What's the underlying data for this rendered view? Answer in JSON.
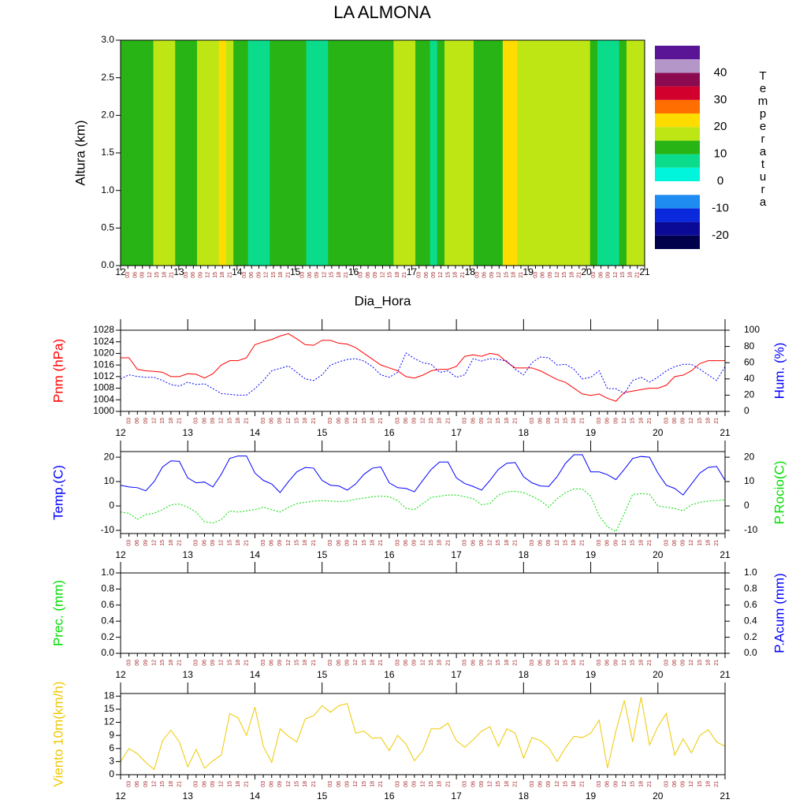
{
  "title": "LA ALMONA",
  "chart_data": [
    {
      "type": "heatmap",
      "ylabel": "Altura (km)",
      "xlabel": "Dia_Hora",
      "ylim": [
        0,
        3
      ],
      "yticks": [
        {
          "value": 0,
          "label": "0.0"
        },
        0.5,
        {
          "value": 1,
          "label": "1.0"
        },
        1.5,
        {
          "value": 2,
          "label": "2.0"
        },
        2.5,
        {
          "value": 3,
          "label": "3.0"
        }
      ],
      "categories": [
        "12",
        "03",
        "06",
        "09",
        "12",
        "15",
        "18",
        "21",
        "13",
        "03",
        "06",
        "09",
        "12",
        "15",
        "18",
        "21",
        "14",
        "03",
        "06",
        "09",
        "12",
        "15",
        "18",
        "21",
        "15",
        "03",
        "06",
        "09",
        "12",
        "15",
        "18",
        "21",
        "16",
        "03",
        "06",
        "09",
        "12",
        "15",
        "18",
        "21",
        "17",
        "03",
        "06",
        "09",
        "12",
        "15",
        "18",
        "21",
        "18",
        "03",
        "06",
        "09",
        "12",
        "15",
        "18",
        "21",
        "19",
        "03",
        "06",
        "09",
        "12",
        "15",
        "18",
        "21",
        "20",
        "03",
        "06",
        "09",
        "12",
        "15",
        "18",
        "21",
        "21"
      ],
      "values": [
        12,
        12,
        12,
        12,
        12,
        17,
        17,
        17,
        12,
        12,
        12,
        17,
        17,
        17,
        21,
        17,
        12,
        12,
        7,
        7,
        7,
        12,
        12,
        12,
        12,
        12,
        7,
        7,
        7,
        12,
        12,
        12,
        12,
        12,
        12,
        12,
        12,
        12,
        17,
        17,
        17,
        12,
        12,
        7,
        12,
        17,
        17,
        17,
        17,
        12,
        12,
        12,
        12,
        21,
        21,
        17,
        17,
        17,
        17,
        17,
        17,
        17,
        17,
        17,
        17,
        12,
        7,
        7,
        7,
        12,
        17,
        17,
        17
      ],
      "colorbar_title": "Temperatura",
      "levels": [
        -25,
        -20,
        -15,
        -10,
        -5,
        0,
        5,
        10,
        15,
        20,
        25,
        30,
        35,
        40,
        45,
        50
      ],
      "colors": [
        "#00004b",
        "#0a0a96",
        "#0a28dc",
        "#1e8cf0",
        "#ffffff",
        "#00f5dc",
        "#0adc8c",
        "#28b414",
        "#bee614",
        "#ffdc00",
        "#ff6e00",
        "#d2002d",
        "#8c0a50",
        "#b496c8",
        "#5a1496"
      ],
      "colorbar_ticks": [
        40,
        30,
        20,
        10,
        0,
        -10,
        -20
      ]
    },
    {
      "type": "line",
      "ylabel": "Pnm (hPa)",
      "y2label": "Hum. (%)",
      "ylabel_color": "#ff0000",
      "y2label_color": "#0000ff",
      "ylim": [
        1000,
        1028
      ],
      "yticks": [
        1000,
        1004,
        1008,
        1012,
        1016,
        1020,
        1024,
        1028
      ],
      "y2lim": [
        0,
        100
      ],
      "y2ticks": [
        0,
        20,
        40,
        60,
        80,
        100
      ],
      "categories": [
        "12",
        "03",
        "06",
        "09",
        "12",
        "15",
        "18",
        "21",
        "13",
        "03",
        "06",
        "09",
        "12",
        "15",
        "18",
        "21",
        "14",
        "03",
        "06",
        "09",
        "12",
        "15",
        "18",
        "21",
        "15",
        "03",
        "06",
        "09",
        "12",
        "15",
        "18",
        "21",
        "16",
        "03",
        "06",
        "09",
        "12",
        "15",
        "18",
        "21",
        "17",
        "03",
        "06",
        "09",
        "12",
        "15",
        "18",
        "21",
        "18",
        "03",
        "06",
        "09",
        "12",
        "15",
        "18",
        "21",
        "19",
        "03",
        "06",
        "09",
        "12",
        "15",
        "18",
        "21",
        "20",
        "03",
        "06",
        "09",
        "12",
        "15",
        "18",
        "21",
        "21"
      ],
      "series": [
        {
          "name": "Pnm",
          "color": "#ff0000",
          "style": "solid",
          "values": [
            1018.5,
            1018.5,
            1014.5,
            1014,
            1013.8,
            1013.5,
            1012,
            1012,
            1013,
            1012.8,
            1011.5,
            1013,
            1016,
            1017.5,
            1017.5,
            1018.5,
            1023,
            1024,
            1024.8,
            1026,
            1026.8,
            1025,
            1023,
            1022.8,
            1024.5,
            1024.5,
            1023.5,
            1023.2,
            1022,
            1020,
            1018,
            1016,
            1015,
            1014,
            1012,
            1011.5,
            1012.5,
            1014,
            1014.5,
            1014.5,
            1015.5,
            1019,
            1019.5,
            1019,
            1020,
            1019.5,
            1017,
            1015,
            1015,
            1015,
            1014,
            1012.5,
            1011,
            1010,
            1008,
            1006,
            1005.5,
            1006,
            1004.5,
            1003.5,
            1006.5,
            1007,
            1007.5,
            1008,
            1008,
            1009,
            1012,
            1012.5,
            1014,
            1016.5,
            1017.5,
            1017.5,
            1017.5
          ]
        },
        {
          "name": "Hum.",
          "color": "#0000ff",
          "style": "dashed",
          "axis": "y2",
          "values": [
            40,
            45,
            43,
            42,
            42,
            38,
            33,
            31,
            36,
            33,
            34,
            28,
            22,
            21,
            20,
            20,
            28,
            38,
            50,
            53,
            56,
            48,
            40,
            38,
            45,
            57,
            61,
            64,
            65,
            62,
            55,
            45,
            42,
            48,
            72,
            65,
            60,
            58,
            48,
            50,
            42,
            45,
            65,
            62,
            65,
            64,
            62,
            52,
            45,
            60,
            67,
            66,
            57,
            58,
            52,
            40,
            42,
            50,
            28,
            28,
            22,
            38,
            42,
            36,
            42,
            50,
            55,
            58,
            58,
            52,
            45,
            38,
            55
          ]
        }
      ]
    },
    {
      "type": "line",
      "ylabel": "Temp.(C)",
      "y2label": "P.Rocio(C)",
      "ylabel_color": "#0000ff",
      "y2label_color": "#00dd00",
      "ylim": [
        -11.3,
        22.3
      ],
      "yticks": [
        -10,
        0,
        10,
        20
      ],
      "y2lim": [
        -11.3,
        22.3
      ],
      "y2ticks": [
        -10,
        0,
        10,
        20
      ],
      "categories": [
        "12",
        "03",
        "06",
        "09",
        "12",
        "15",
        "18",
        "21",
        "13",
        "03",
        "06",
        "09",
        "12",
        "15",
        "18",
        "21",
        "14",
        "03",
        "06",
        "09",
        "12",
        "15",
        "18",
        "21",
        "15",
        "03",
        "06",
        "09",
        "12",
        "15",
        "18",
        "21",
        "16",
        "03",
        "06",
        "09",
        "12",
        "15",
        "18",
        "21",
        "17",
        "03",
        "06",
        "09",
        "12",
        "15",
        "18",
        "21",
        "18",
        "03",
        "06",
        "09",
        "12",
        "15",
        "18",
        "21",
        "19",
        "03",
        "06",
        "09",
        "12",
        "15",
        "18",
        "21",
        "20",
        "03",
        "06",
        "09",
        "12",
        "15",
        "18",
        "21",
        "21"
      ],
      "series": [
        {
          "name": "Temp.",
          "color": "#0000ff",
          "style": "solid",
          "values": [
            8.5,
            7.8,
            7.5,
            6.2,
            10,
            16,
            18.5,
            18.3,
            11.5,
            9.5,
            9.8,
            7.8,
            13,
            19.5,
            20.5,
            20.5,
            13.5,
            10.5,
            9,
            5.5,
            10,
            14,
            15.8,
            15.5,
            10.5,
            8.5,
            8.2,
            6.5,
            9,
            13,
            15.5,
            16,
            9.5,
            7.5,
            7.2,
            5.8,
            10.5,
            15,
            18,
            18,
            11.5,
            9.2,
            8,
            6.5,
            10.5,
            15,
            17.5,
            17.8,
            12,
            9.5,
            8.2,
            8,
            12,
            17.5,
            21,
            21,
            14,
            14,
            12.8,
            10.8,
            15,
            19.5,
            20.3,
            20,
            13.5,
            8.5,
            7.2,
            4.5,
            9,
            13.5,
            15.8,
            16.2,
            10.5
          ]
        },
        {
          "name": "P.Rocio",
          "color": "#00dd00",
          "style": "dashed",
          "axis": "y2",
          "values": [
            -2.5,
            -3,
            -5.5,
            -3.5,
            -3,
            -1.5,
            0.5,
            0.8,
            -0.5,
            -2.5,
            -6.5,
            -7,
            -5.5,
            -2,
            -2.5,
            -2,
            -1.5,
            -0.5,
            -1.5,
            -2.5,
            -0.5,
            1,
            1.5,
            2,
            2.2,
            2,
            1.8,
            2,
            2.8,
            3.2,
            3.8,
            4,
            3.8,
            2.2,
            -1,
            -1.5,
            1,
            3.5,
            4,
            4.5,
            4.5,
            3.8,
            3,
            0.5,
            1,
            4.5,
            5.8,
            6,
            5.5,
            4,
            2.2,
            -0.5,
            3,
            5.5,
            7,
            7,
            4,
            -4,
            -8.5,
            -10.5,
            -3,
            4.8,
            5,
            4.8,
            0,
            -0.5,
            -1,
            -2,
            0.5,
            1.5,
            2,
            2.2,
            2.5
          ]
        }
      ]
    },
    {
      "type": "line",
      "ylabel": "Prec. (mm)",
      "y2label": "P.Acum (mm)",
      "ylabel_color": "#00dd00",
      "y2label_color": "#0000ff",
      "ylim": [
        0,
        1
      ],
      "yticks": [
        {
          "value": 0,
          "label": "0.0"
        },
        0.2,
        0.4,
        0.6,
        0.8,
        {
          "value": 1,
          "label": "1.0"
        }
      ],
      "y2lim": [
        0,
        1
      ],
      "y2ticks": [
        {
          "value": 0,
          "label": "0.0"
        },
        0.2,
        0.4,
        0.6,
        0.8,
        {
          "value": 1,
          "label": "1.0"
        }
      ],
      "categories": [
        "12",
        "03",
        "06",
        "09",
        "12",
        "15",
        "18",
        "21",
        "13",
        "03",
        "06",
        "09",
        "12",
        "15",
        "18",
        "21",
        "14",
        "03",
        "06",
        "09",
        "12",
        "15",
        "18",
        "21",
        "15",
        "03",
        "06",
        "09",
        "12",
        "15",
        "18",
        "21",
        "16",
        "03",
        "06",
        "09",
        "12",
        "15",
        "18",
        "21",
        "17",
        "03",
        "06",
        "09",
        "12",
        "15",
        "18",
        "21",
        "18",
        "03",
        "06",
        "09",
        "12",
        "15",
        "18",
        "21",
        "19",
        "03",
        "06",
        "09",
        "12",
        "15",
        "18",
        "21",
        "20",
        "03",
        "06",
        "09",
        "12",
        "15",
        "18",
        "21",
        "21"
      ],
      "series": []
    },
    {
      "type": "line",
      "ylabel": "Viento 10m(km/h)",
      "ylabel_color": "#f0c800",
      "ylim": [
        0,
        18.6
      ],
      "yticks": [
        0,
        3,
        6,
        9,
        12,
        15,
        18
      ],
      "categories": [
        "12",
        "03",
        "06",
        "09",
        "12",
        "15",
        "18",
        "21",
        "13",
        "03",
        "06",
        "09",
        "12",
        "15",
        "18",
        "21",
        "14",
        "03",
        "06",
        "09",
        "12",
        "15",
        "18",
        "21",
        "15",
        "03",
        "06",
        "09",
        "12",
        "15",
        "18",
        "21",
        "16",
        "03",
        "06",
        "09",
        "12",
        "15",
        "18",
        "21",
        "17",
        "03",
        "06",
        "09",
        "12",
        "15",
        "18",
        "21",
        "18",
        "03",
        "06",
        "09",
        "12",
        "15",
        "18",
        "21",
        "19",
        "03",
        "06",
        "09",
        "12",
        "15",
        "18",
        "21",
        "20",
        "03",
        "06",
        "09",
        "12",
        "15",
        "18",
        "21",
        "21"
      ],
      "series": [
        {
          "name": "Viento 10m",
          "color": "#f0c800",
          "style": "solid",
          "values": [
            3,
            6,
            4.8,
            2.8,
            1.2,
            7.8,
            10.2,
            7.5,
            1.8,
            5.8,
            1.5,
            3.2,
            4.5,
            14,
            13,
            9,
            15.5,
            6.5,
            2.8,
            10.5,
            8.8,
            7.5,
            12.8,
            13.5,
            15.8,
            14.3,
            15.8,
            16.3,
            9.5,
            10,
            8.3,
            8.5,
            5.5,
            9,
            7,
            3.2,
            5.5,
            10.5,
            10.5,
            11.8,
            7.8,
            6.3,
            8,
            10,
            11,
            6.5,
            10.5,
            9.5,
            3.8,
            8.5,
            7.8,
            6.2,
            3,
            6.2,
            8.8,
            8.5,
            9.5,
            12.5,
            1.5,
            10,
            17,
            7.5,
            17.8,
            6.8,
            11,
            14,
            4.5,
            8.2,
            5,
            9,
            10.3,
            7.5,
            6.5
          ]
        }
      ]
    }
  ]
}
